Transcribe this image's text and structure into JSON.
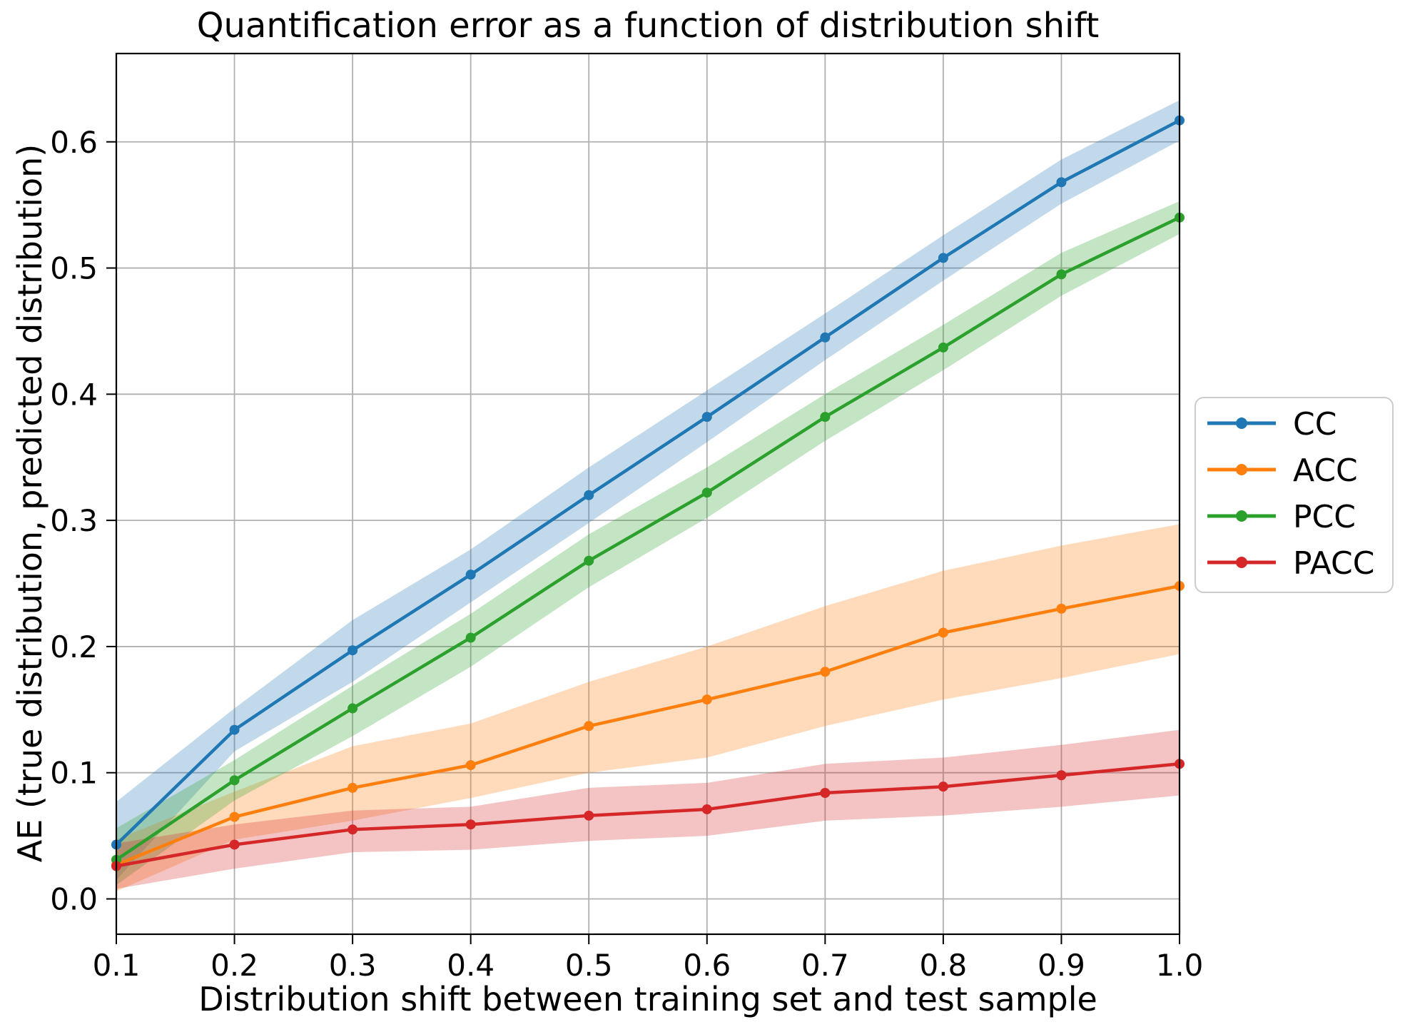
{
  "chart_data": {
    "type": "line",
    "title": "Quantification error as a function of distribution shift",
    "xlabel": "Distribution shift between training set and test sample",
    "ylabel": "AE (true distribution, predicted distribution)",
    "x": [
      0.1,
      0.2,
      0.3,
      0.4,
      0.5,
      0.6,
      0.7,
      0.8,
      0.9,
      1.0
    ],
    "x_tick_labels": [
      "0.1",
      "0.2",
      "0.3",
      "0.4",
      "0.5",
      "0.6",
      "0.7",
      "0.8",
      "0.9",
      "1.0"
    ],
    "y_ticks": [
      0.0,
      0.1,
      0.2,
      0.3,
      0.4,
      0.5,
      0.6
    ],
    "y_tick_labels": [
      "0.0",
      "0.1",
      "0.2",
      "0.3",
      "0.4",
      "0.5",
      "0.6"
    ],
    "xlim": [
      0.1,
      1.0
    ],
    "ylim": [
      -0.028,
      0.67
    ],
    "grid": true,
    "legend": {
      "position": "outside-right",
      "entries": [
        "CC",
        "ACC",
        "PCC",
        "PACC"
      ]
    },
    "series": [
      {
        "name": "CC",
        "color": "#1f77b4",
        "values": [
          0.043,
          0.134,
          0.197,
          0.257,
          0.32,
          0.382,
          0.445,
          0.508,
          0.568,
          0.617
        ],
        "band_lower": [
          0.015,
          0.117,
          0.172,
          0.235,
          0.298,
          0.362,
          0.427,
          0.49,
          0.551,
          0.601
        ],
        "band_upper": [
          0.077,
          0.151,
          0.221,
          0.277,
          0.342,
          0.403,
          0.464,
          0.526,
          0.586,
          0.633
        ]
      },
      {
        "name": "ACC",
        "color": "#ff7f0e",
        "values": [
          0.027,
          0.065,
          0.088,
          0.106,
          0.137,
          0.158,
          0.18,
          0.211,
          0.23,
          0.248
        ],
        "band_lower": [
          0.006,
          0.047,
          0.062,
          0.08,
          0.1,
          0.112,
          0.137,
          0.158,
          0.175,
          0.194
        ],
        "band_upper": [
          0.047,
          0.085,
          0.121,
          0.139,
          0.172,
          0.2,
          0.232,
          0.26,
          0.28,
          0.297
        ]
      },
      {
        "name": "PCC",
        "color": "#2ca02c",
        "values": [
          0.031,
          0.094,
          0.151,
          0.207,
          0.268,
          0.322,
          0.382,
          0.437,
          0.495,
          0.54
        ],
        "band_lower": [
          0.011,
          0.078,
          0.129,
          0.184,
          0.247,
          0.302,
          0.363,
          0.419,
          0.478,
          0.527
        ],
        "band_upper": [
          0.056,
          0.11,
          0.169,
          0.226,
          0.289,
          0.342,
          0.4,
          0.455,
          0.512,
          0.553
        ]
      },
      {
        "name": "PACC",
        "color": "#d62728",
        "values": [
          0.026,
          0.043,
          0.055,
          0.059,
          0.066,
          0.071,
          0.084,
          0.089,
          0.098,
          0.107
        ],
        "band_lower": [
          0.008,
          0.024,
          0.037,
          0.039,
          0.046,
          0.05,
          0.062,
          0.066,
          0.073,
          0.082
        ],
        "band_upper": [
          0.044,
          0.059,
          0.07,
          0.073,
          0.088,
          0.092,
          0.107,
          0.112,
          0.122,
          0.134
        ]
      }
    ]
  },
  "style_colors": {
    "grid": "#b0b0b0",
    "spine": "#000000",
    "background": "#ffffff",
    "legend_border": "#cccccc"
  }
}
